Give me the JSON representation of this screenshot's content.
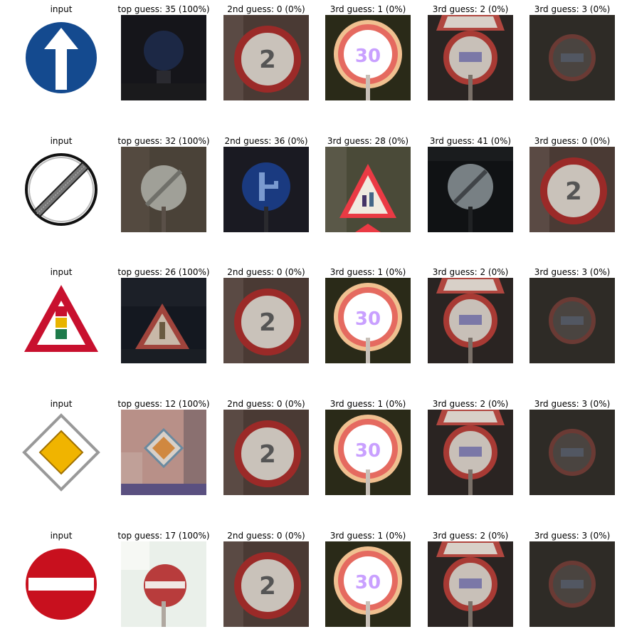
{
  "rows": [
    {
      "input_label": "input",
      "input_sign": "ahead-only-sign",
      "guesses": [
        {
          "label": "top guess: 35 (100%)",
          "thumb": "ahead-only-dark"
        },
        {
          "label": "2nd guess: 0 (0%)",
          "thumb": "speed-20-red-circle"
        },
        {
          "label": "3rd guess: 1 (0%)",
          "thumb": "speed-30-bright-circle"
        },
        {
          "label": "3rd guess: 2 (0%)",
          "thumb": "speed-50-with-triangle"
        },
        {
          "label": "3rd guess: 3 (0%)",
          "thumb": "speed-60-dark-circle"
        }
      ]
    },
    {
      "input_label": "input",
      "input_sign": "end-of-restrictions-sign",
      "guesses": [
        {
          "label": "top guess: 32 (100%)",
          "thumb": "end-restrictions-gray"
        },
        {
          "label": "2nd guess: 36 (0%)",
          "thumb": "go-straight-or-right-blue"
        },
        {
          "label": "3rd guess: 28 (0%)",
          "thumb": "children-crossing-triangle"
        },
        {
          "label": "3rd guess: 41 (0%)",
          "thumb": "end-no-passing-dark"
        },
        {
          "label": "3rd guess: 0 (0%)",
          "thumb": "speed-20-red-circle"
        }
      ]
    },
    {
      "input_label": "input",
      "input_sign": "traffic-signals-sign",
      "guesses": [
        {
          "label": "top guess: 26 (100%)",
          "thumb": "traffic-signals-triangle-dark"
        },
        {
          "label": "2nd guess: 0 (0%)",
          "thumb": "speed-20-red-circle"
        },
        {
          "label": "3rd guess: 1 (0%)",
          "thumb": "speed-30-bright-circle"
        },
        {
          "label": "3rd guess: 2 (0%)",
          "thumb": "speed-50-with-triangle"
        },
        {
          "label": "3rd guess: 3 (0%)",
          "thumb": "speed-60-dark-circle"
        }
      ]
    },
    {
      "input_label": "input",
      "input_sign": "priority-road-sign",
      "guesses": [
        {
          "label": "top guess: 12 (100%)",
          "thumb": "priority-road-pink"
        },
        {
          "label": "2nd guess: 0 (0%)",
          "thumb": "speed-20-red-circle"
        },
        {
          "label": "3rd guess: 1 (0%)",
          "thumb": "speed-30-bright-circle"
        },
        {
          "label": "3rd guess: 2 (0%)",
          "thumb": "speed-50-with-triangle"
        },
        {
          "label": "3rd guess: 3 (0%)",
          "thumb": "speed-60-dark-circle"
        }
      ]
    },
    {
      "input_label": "input",
      "input_sign": "no-entry-sign",
      "guesses": [
        {
          "label": "top guess: 17 (100%)",
          "thumb": "no-entry-white"
        },
        {
          "label": "2nd guess: 0 (0%)",
          "thumb": "speed-20-red-circle"
        },
        {
          "label": "3rd guess: 1 (0%)",
          "thumb": "speed-30-bright-circle"
        },
        {
          "label": "3rd guess: 2 (0%)",
          "thumb": "speed-50-with-triangle"
        },
        {
          "label": "3rd guess: 3 (0%)",
          "thumb": "speed-60-dark-circle"
        }
      ]
    }
  ]
}
